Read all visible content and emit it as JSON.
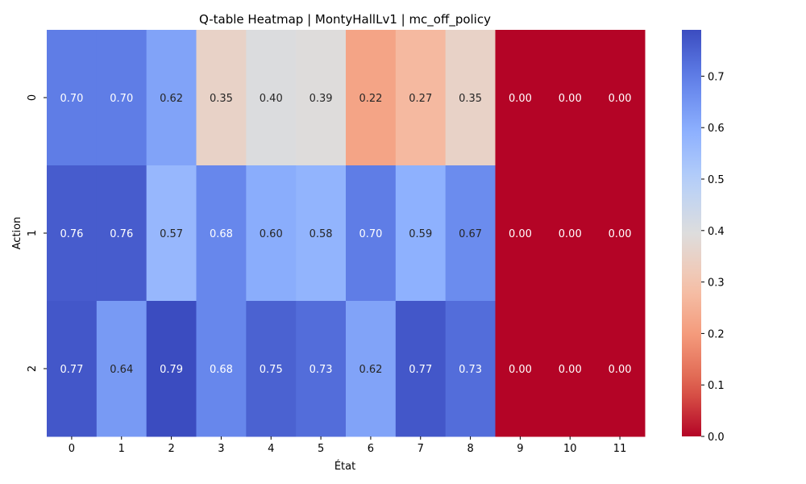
{
  "chart_data": {
    "type": "heatmap",
    "title": "Q-table Heatmap | MontyHallLv1 | mc_off_policy",
    "xlabel": "État",
    "ylabel": "Action",
    "x_categories": [
      "0",
      "1",
      "2",
      "3",
      "4",
      "5",
      "6",
      "7",
      "8",
      "9",
      "10",
      "11"
    ],
    "y_categories": [
      "0",
      "1",
      "2"
    ],
    "values": [
      [
        0.7,
        0.7,
        0.62,
        0.35,
        0.4,
        0.39,
        0.22,
        0.27,
        0.35,
        0.0,
        0.0,
        0.0
      ],
      [
        0.76,
        0.76,
        0.57,
        0.68,
        0.6,
        0.58,
        0.7,
        0.59,
        0.67,
        0.0,
        0.0,
        0.0
      ],
      [
        0.77,
        0.64,
        0.79,
        0.68,
        0.75,
        0.73,
        0.62,
        0.77,
        0.73,
        0.0,
        0.0,
        0.0
      ]
    ],
    "value_format": "0.00",
    "colormap": "coolwarm_r",
    "vmin": 0.0,
    "vmax": 0.79,
    "colorbar_ticks": [
      0.0,
      0.1,
      0.2,
      0.3,
      0.4,
      0.5,
      0.6,
      0.7
    ],
    "colorbar_labels": [
      "0.0",
      "0.1",
      "0.2",
      "0.3",
      "0.4",
      "0.5",
      "0.6",
      "0.7"
    ]
  }
}
